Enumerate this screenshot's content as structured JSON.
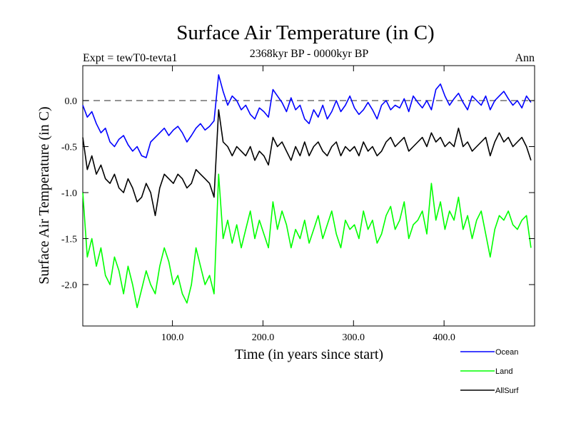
{
  "chart_data": {
    "type": "line",
    "title": "Surface Air Temperature (in C)",
    "subtitle": "2368kyr BP - 0000kyr BP",
    "left_note": "Expt = tewT0-tevta1",
    "right_note": "Ann",
    "xlabel": "Time (in years since start)",
    "ylabel": "Surface Air Temperature (in C)",
    "xlim": [
      1,
      500
    ],
    "ylim": [
      -2.45,
      0.38
    ],
    "xticks": [
      100,
      200,
      300,
      400
    ],
    "xtick_labels": [
      "100.0",
      "200.0",
      "300.0",
      "400.0"
    ],
    "yticks": [
      0.0,
      -0.5,
      -1.0,
      -1.5,
      -2.0
    ],
    "ytick_labels": [
      "0.0",
      "-0.5",
      "-1.0",
      "-1.5",
      "-2.0"
    ],
    "reference_line": 0.0,
    "legend_position": "bottom-right, below plot",
    "x_step": 5,
    "series": [
      {
        "name": "Ocean",
        "color": "#0000ff",
        "values": [
          -0.05,
          -0.18,
          -0.12,
          -0.25,
          -0.35,
          -0.3,
          -0.45,
          -0.5,
          -0.42,
          -0.38,
          -0.48,
          -0.55,
          -0.5,
          -0.6,
          -0.62,
          -0.45,
          -0.4,
          -0.35,
          -0.3,
          -0.38,
          -0.32,
          -0.28,
          -0.35,
          -0.45,
          -0.38,
          -0.3,
          -0.25,
          -0.32,
          -0.28,
          -0.22,
          0.28,
          0.1,
          -0.05,
          0.05,
          0.0,
          -0.1,
          -0.05,
          -0.15,
          -0.2,
          -0.08,
          -0.12,
          -0.18,
          0.12,
          0.05,
          -0.02,
          -0.12,
          0.03,
          -0.1,
          -0.05,
          -0.2,
          -0.25,
          -0.1,
          -0.18,
          -0.05,
          -0.2,
          -0.12,
          0.0,
          -0.12,
          -0.05,
          0.05,
          -0.08,
          -0.15,
          -0.1,
          -0.02,
          -0.1,
          -0.2,
          -0.05,
          0.0,
          -0.1,
          -0.05,
          -0.08,
          0.02,
          -0.12,
          0.05,
          -0.02,
          -0.08,
          0.0,
          -0.1,
          0.12,
          0.18,
          0.05,
          -0.05,
          0.02,
          0.08,
          -0.02,
          -0.1,
          0.05,
          0.0,
          -0.05,
          0.05,
          -0.1,
          0.0,
          0.05,
          0.1,
          0.02,
          -0.05,
          0.0,
          -0.08,
          0.05,
          -0.02
        ]
      },
      {
        "name": "Land",
        "color": "#00ff00",
        "values": [
          -1.0,
          -1.7,
          -1.5,
          -1.8,
          -1.6,
          -1.9,
          -2.0,
          -1.7,
          -1.85,
          -2.1,
          -1.8,
          -2.0,
          -2.25,
          -2.05,
          -1.85,
          -2.0,
          -2.1,
          -1.8,
          -1.6,
          -1.75,
          -2.0,
          -1.9,
          -2.1,
          -2.2,
          -2.0,
          -1.6,
          -1.8,
          -2.0,
          -1.9,
          -2.1,
          -0.8,
          -1.5,
          -1.3,
          -1.55,
          -1.35,
          -1.6,
          -1.4,
          -1.2,
          -1.5,
          -1.3,
          -1.45,
          -1.6,
          -1.1,
          -1.4,
          -1.2,
          -1.35,
          -1.6,
          -1.4,
          -1.5,
          -1.3,
          -1.55,
          -1.4,
          -1.25,
          -1.5,
          -1.35,
          -1.2,
          -1.45,
          -1.6,
          -1.3,
          -1.4,
          -1.35,
          -1.5,
          -1.2,
          -1.4,
          -1.3,
          -1.55,
          -1.45,
          -1.25,
          -1.15,
          -1.4,
          -1.3,
          -1.1,
          -1.5,
          -1.35,
          -1.3,
          -1.2,
          -1.45,
          -0.9,
          -1.3,
          -1.1,
          -1.4,
          -1.2,
          -1.3,
          -1.05,
          -1.4,
          -1.25,
          -1.5,
          -1.3,
          -1.2,
          -1.45,
          -1.7,
          -1.4,
          -1.25,
          -1.3,
          -1.2,
          -1.35,
          -1.4,
          -1.3,
          -1.25,
          -1.6
        ]
      },
      {
        "name": "AllSurf",
        "color": "#000000",
        "values": [
          -0.4,
          -0.75,
          -0.6,
          -0.8,
          -0.7,
          -0.85,
          -0.9,
          -0.8,
          -0.95,
          -1.0,
          -0.85,
          -0.95,
          -1.1,
          -1.05,
          -0.9,
          -1.0,
          -1.25,
          -0.95,
          -0.8,
          -0.85,
          -0.9,
          -0.8,
          -0.85,
          -0.95,
          -0.9,
          -0.75,
          -0.8,
          -0.85,
          -0.9,
          -1.05,
          -0.1,
          -0.45,
          -0.5,
          -0.6,
          -0.5,
          -0.55,
          -0.6,
          -0.5,
          -0.65,
          -0.55,
          -0.6,
          -0.7,
          -0.4,
          -0.5,
          -0.45,
          -0.55,
          -0.65,
          -0.5,
          -0.6,
          -0.45,
          -0.6,
          -0.5,
          -0.45,
          -0.55,
          -0.6,
          -0.5,
          -0.45,
          -0.6,
          -0.5,
          -0.55,
          -0.5,
          -0.6,
          -0.45,
          -0.55,
          -0.5,
          -0.6,
          -0.55,
          -0.45,
          -0.4,
          -0.5,
          -0.45,
          -0.4,
          -0.55,
          -0.5,
          -0.45,
          -0.4,
          -0.5,
          -0.35,
          -0.45,
          -0.4,
          -0.5,
          -0.45,
          -0.5,
          -0.3,
          -0.5,
          -0.45,
          -0.55,
          -0.5,
          -0.45,
          -0.4,
          -0.6,
          -0.45,
          -0.35,
          -0.45,
          -0.4,
          -0.5,
          -0.45,
          -0.4,
          -0.5,
          -0.65
        ]
      }
    ]
  }
}
